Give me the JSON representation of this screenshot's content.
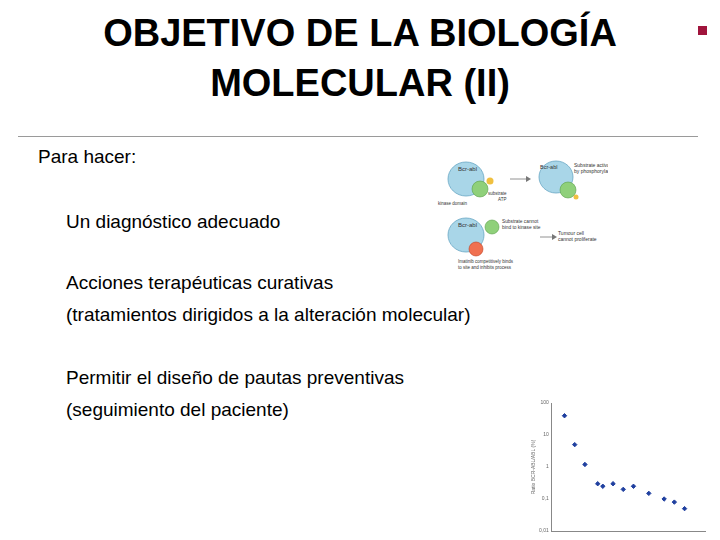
{
  "slide": {
    "title": [
      "OBJETIVO DE LA BIOLOGÍA",
      "MOLECULAR (II)"
    ],
    "intro": "Para hacer:",
    "items": [
      [
        "Un diagnóstico adecuado"
      ],
      [
        "Acciones terapéuticas curativas",
        "(tratamientos dirigidos a la alteración molecular)"
      ],
      [
        "Permitir el diseño de pautas preventivas",
        "(seguimiento del paciente)"
      ]
    ]
  },
  "diagram": {
    "top_left": {
      "protein": "Bcr-abl",
      "domain": "kinase domain",
      "substrate": "substrate",
      "atp": "ATP"
    },
    "top_right": {
      "protein": "Bcr-abl",
      "note": [
        "Substrate activated",
        "by phosphorylation"
      ]
    },
    "bottom": {
      "protein": "Bcr-abl",
      "note": [
        "Substrate cannot",
        "bind to kinase site"
      ],
      "inhibitor": [
        "Imatinib competitively binds",
        "to site and inhibits process"
      ],
      "result": [
        "Tumour cell",
        "cannot proliferate"
      ]
    }
  },
  "chart_data": {
    "type": "scatter",
    "y_label": "Ratio BCR-ABL/ABL (%)",
    "x": [
      1,
      1.8,
      2.6,
      3.6,
      4,
      4.8,
      5.6,
      6.4,
      7.6,
      8.8,
      9.6,
      10.4
    ],
    "values": [
      40,
      5,
      1.2,
      0.3,
      0.25,
      0.3,
      0.2,
      0.25,
      0.15,
      0.1,
      0.08,
      0.05
    ],
    "color": "#1f3f9f",
    "marker": "diamond",
    "log": "y",
    "xlim": [
      0,
      12
    ],
    "xticks": [
      0,
      12
    ],
    "ylim": [
      0.01,
      100
    ],
    "yticks": [
      {
        "value": 0.01,
        "label": "0,01"
      },
      {
        "value": 0.1,
        "label": "0,1"
      },
      1,
      10,
      100
    ],
    "grid": false,
    "tick_labels": "y"
  }
}
